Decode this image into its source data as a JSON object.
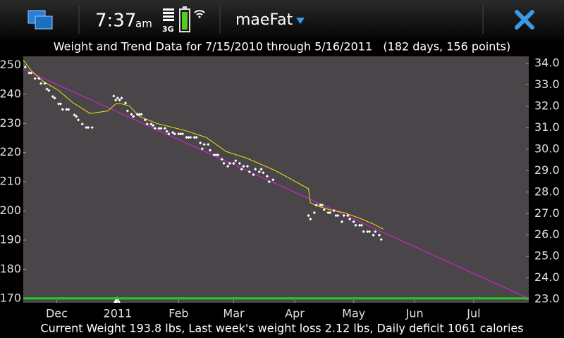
{
  "status_bar": {
    "time": "7:37",
    "ampm": "am",
    "network": "3G",
    "app_title": "maeFat"
  },
  "chart_data": {
    "type": "scatter",
    "title": "Weight and Trend Data for 7/15/2010 through 5/16/2011   (182 days, 156 points)",
    "footer": "Current Weight 193.8 lbs, Last week's weight loss 2.12 lbs, Daily deficit 1061 calories",
    "xlim": [
      "2010-11-14",
      "2011-07-29"
    ],
    "xticks": [
      {
        "value": "2010-12-01",
        "label": "Dec"
      },
      {
        "value": "2011-01-01",
        "label": "2011"
      },
      {
        "value": "2011-02-01",
        "label": "Feb"
      },
      {
        "value": "2011-03-01",
        "label": "Mar"
      },
      {
        "value": "2011-04-01",
        "label": "Apr"
      },
      {
        "value": "2011-05-01",
        "label": "May"
      },
      {
        "value": "2011-06-01",
        "label": "Jun"
      },
      {
        "value": "2011-07-01",
        "label": "Jul"
      }
    ],
    "ylim": [
      168.5,
      253
    ],
    "yticks": [
      170,
      180,
      190,
      200,
      210,
      220,
      230,
      240,
      250
    ],
    "y2lim": [
      22.84,
      34.33
    ],
    "y2ticks": [
      {
        "value": 23,
        "label": "23.0"
      },
      {
        "value": 24,
        "label": "24.0"
      },
      {
        "value": 25,
        "label": "25.0"
      },
      {
        "value": 26,
        "label": "26.0"
      },
      {
        "value": 27,
        "label": "27.0"
      },
      {
        "value": 28,
        "label": "28.0"
      },
      {
        "value": 29,
        "label": "29.0"
      },
      {
        "value": 30,
        "label": "30.0"
      },
      {
        "value": 31,
        "label": "31.0"
      },
      {
        "value": 32,
        "label": "32.0"
      },
      {
        "value": 33,
        "label": "33.0"
      },
      {
        "value": 34,
        "label": "34.0"
      }
    ],
    "y2tick_colors": [
      "#22dd22",
      "#22dd22",
      "#eeee00",
      "#eeee00",
      "#eeee00",
      "#eeee00",
      "#eeee00",
      "#ff2020",
      "#ff2020",
      "#ff2020",
      "#ff2020",
      "#ff2020"
    ],
    "weights": {
      "color": "#ffffff",
      "x": [
        "2010-11-15",
        "2010-11-17",
        "2010-11-18",
        "2010-11-20",
        "2010-11-22",
        "2010-11-23",
        "2010-11-25",
        "2010-11-26",
        "2010-11-27",
        "2010-11-29",
        "2010-11-30",
        "2010-12-02",
        "2010-12-03",
        "2010-12-04",
        "2010-12-06",
        "2010-12-07",
        "2010-12-10",
        "2010-12-11",
        "2010-12-12",
        "2010-12-14",
        "2010-12-16",
        "2010-12-17",
        "2010-12-19",
        "2010-12-30",
        "2010-12-31",
        "2011-01-01",
        "2011-01-02",
        "2011-01-03",
        "2011-01-05",
        "2011-01-06",
        "2011-01-08",
        "2011-01-09",
        "2011-01-11",
        "2011-01-12",
        "2011-01-13",
        "2011-01-15",
        "2011-01-16",
        "2011-01-18",
        "2011-01-19",
        "2011-01-20",
        "2011-01-22",
        "2011-01-23",
        "2011-01-25",
        "2011-01-26",
        "2011-01-27",
        "2011-01-29",
        "2011-01-30",
        "2011-02-01",
        "2011-02-02",
        "2011-02-03",
        "2011-02-05",
        "2011-02-06",
        "2011-02-07",
        "2011-02-09",
        "2011-02-10",
        "2011-02-12",
        "2011-02-13",
        "2011-02-14",
        "2011-02-16",
        "2011-02-17",
        "2011-02-19",
        "2011-02-20",
        "2011-02-21",
        "2011-02-23",
        "2011-02-24",
        "2011-02-26",
        "2011-02-27",
        "2011-03-01",
        "2011-03-02",
        "2011-03-04",
        "2011-03-05",
        "2011-03-06",
        "2011-03-08",
        "2011-03-09",
        "2011-03-11",
        "2011-03-12",
        "2011-03-14",
        "2011-03-15",
        "2011-03-16",
        "2011-03-18",
        "2011-03-19",
        "2011-03-21",
        "2011-04-08",
        "2011-04-09",
        "2011-04-11",
        "2011-04-12",
        "2011-04-14",
        "2011-04-15",
        "2011-04-16",
        "2011-04-18",
        "2011-04-19",
        "2011-04-21",
        "2011-04-22",
        "2011-04-23",
        "2011-04-25",
        "2011-04-26",
        "2011-04-28",
        "2011-04-29",
        "2011-05-01",
        "2011-05-02",
        "2011-05-04",
        "2011-05-05",
        "2011-05-06",
        "2011-05-08",
        "2011-05-09",
        "2011-05-11",
        "2011-05-12",
        "2011-05-14",
        "2011-05-15"
      ],
      "values": [
        249.3,
        247.3,
        247.3,
        245.4,
        245.4,
        243.7,
        243.7,
        241.8,
        241.3,
        239.2,
        238.7,
        236.7,
        236.7,
        234.8,
        234.8,
        234.8,
        232.9,
        232.4,
        231.2,
        229.8,
        228.6,
        228.6,
        228.6,
        239.4,
        238.0,
        238.7,
        238.0,
        238.7,
        237.0,
        234.3,
        233.1,
        232.4,
        233.1,
        233.1,
        233.1,
        231.2,
        229.8,
        229.8,
        229.3,
        228.3,
        228.3,
        228.3,
        228.3,
        227.3,
        226.4,
        226.9,
        226.4,
        226.4,
        226.4,
        226.4,
        225.2,
        225.2,
        225.2,
        225.2,
        225.2,
        223.3,
        221.3,
        222.8,
        222.8,
        220.8,
        219.2,
        219.2,
        219.2,
        217.7,
        216.3,
        215.3,
        216.3,
        216.3,
        217.2,
        216.3,
        214.3,
        215.3,
        215.3,
        213.4,
        212.4,
        214.3,
        213.4,
        214.3,
        213.1,
        211.9,
        210.0,
        210.7,
        198.4,
        197.2,
        199.4,
        202.0,
        202.0,
        202.0,
        200.4,
        199.4,
        199.4,
        200.1,
        198.4,
        198.4,
        196.3,
        198.4,
        198.4,
        197.2,
        196.3,
        195.1,
        195.1,
        195.1,
        192.9,
        192.9,
        192.9,
        191.7,
        192.9,
        191.7,
        190.2
      ]
    },
    "trend": {
      "color": "#e8e800",
      "x": [
        "2010-11-14",
        "2010-11-18",
        "2010-11-24",
        "2010-12-02",
        "2010-12-09",
        "2010-12-18",
        "2010-12-27",
        "2010-12-31",
        "2011-01-03",
        "2011-01-07",
        "2011-01-12",
        "2011-01-21",
        "2011-02-04",
        "2011-02-15",
        "2011-02-25",
        "2011-03-08",
        "2011-03-22",
        "2011-04-08",
        "2011-04-09",
        "2011-04-12",
        "2011-04-19",
        "2011-04-26",
        "2011-05-04",
        "2011-05-11",
        "2011-05-16"
      ],
      "values": [
        251.7,
        248.1,
        244.5,
        241.3,
        237.2,
        233.4,
        234.3,
        236.7,
        236.7,
        236.0,
        232.4,
        230.0,
        227.6,
        225.2,
        220.4,
        218.0,
        213.9,
        207.6,
        202.8,
        201.8,
        200.4,
        199.4,
        197.5,
        195.5,
        193.8
      ]
    },
    "fit": {
      "color": "#e020e0",
      "x": [
        "2010-11-14",
        "2011-07-29"
      ],
      "values": [
        248.6,
        170.0
      ]
    },
    "goal": {
      "color": "#22cc22",
      "value": 170
    }
  }
}
